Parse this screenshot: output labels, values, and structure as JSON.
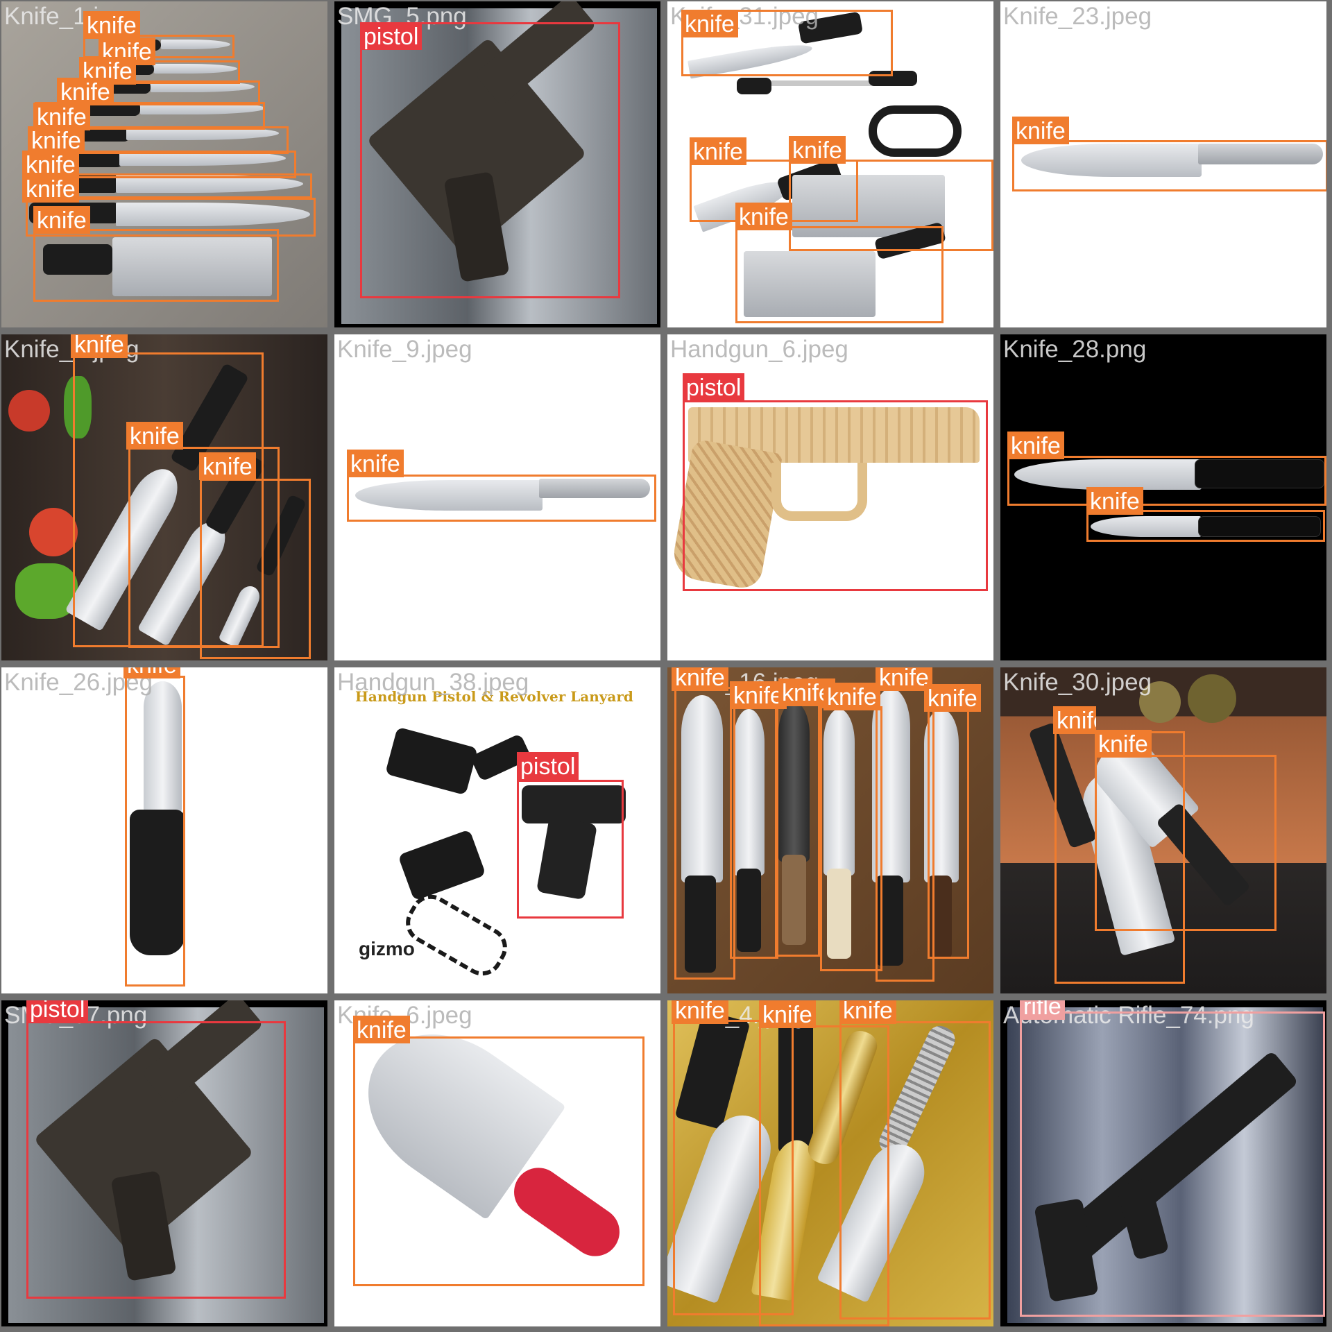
{
  "colors": {
    "grid_bg": "#6f6f6f",
    "knife_box": "#f07c2e",
    "pistol_box": "#e8393f",
    "rifle_box": "#f0a0a0"
  },
  "tiles": [
    {
      "filename": "Knife_1.jpeg",
      "bg": "#8d8a86",
      "detections": [
        {
          "label": "knife"
        },
        {
          "label": "knife"
        },
        {
          "label": "knife"
        },
        {
          "label": "knife"
        },
        {
          "label": "knife"
        },
        {
          "label": "knife"
        },
        {
          "label": "knife"
        },
        {
          "label": "knife"
        },
        {
          "label": "knife"
        }
      ]
    },
    {
      "filename": "SMG_5.png",
      "bg": "#000000",
      "detections": [
        {
          "label": "pistol"
        }
      ]
    },
    {
      "filename": "Knife_31.jpeg",
      "bg": "#ffffff",
      "detections": [
        {
          "label": "knife"
        },
        {
          "label": "knife"
        },
        {
          "label": "knife"
        },
        {
          "label": "knife"
        }
      ]
    },
    {
      "filename": "Knife_23.jpeg",
      "bg": "#ffffff",
      "detections": [
        {
          "label": "knife"
        }
      ]
    },
    {
      "filename": "Knife_5.jpeg",
      "bg": "#3a3430",
      "detections": [
        {
          "label": "knife"
        },
        {
          "label": "knife"
        },
        {
          "label": "knife"
        }
      ]
    },
    {
      "filename": "Knife_9.jpeg",
      "bg": "#ffffff",
      "detections": [
        {
          "label": "knife"
        }
      ]
    },
    {
      "filename": "Handgun_6.jpeg",
      "bg": "#ffffff",
      "detections": [
        {
          "label": "pistol"
        }
      ]
    },
    {
      "filename": "Knife_28.png",
      "bg": "#000000",
      "detections": [
        {
          "label": "knife"
        },
        {
          "label": "knife"
        }
      ]
    },
    {
      "filename": "Knife_26.jpeg",
      "bg": "#ffffff",
      "detections": [
        {
          "label": "knife"
        }
      ]
    },
    {
      "filename": "Handgun_38.jpeg",
      "bg": "#ffffff",
      "caption": "Handgun Pistol & Revolver Lanyard",
      "brand": "gizmo",
      "detections": [
        {
          "label": "pistol"
        }
      ]
    },
    {
      "filename": "Knife_16.jpeg",
      "bg": "#6b4a2e",
      "detections": [
        {
          "label": "knife"
        },
        {
          "label": "knife"
        },
        {
          "label": "knife"
        },
        {
          "label": "knife"
        },
        {
          "label": "knife"
        },
        {
          "label": "knife"
        }
      ]
    },
    {
      "filename": "Knife_30.jpeg",
      "bg": "#3a2a22",
      "detections": [
        {
          "label": "knife"
        },
        {
          "label": "knife"
        }
      ]
    },
    {
      "filename": "SMG_57.png",
      "bg": "#000000",
      "detections": [
        {
          "label": "pistol"
        }
      ]
    },
    {
      "filename": "Knife_6.jpeg",
      "bg": "#ffffff",
      "detections": [
        {
          "label": "knife"
        }
      ]
    },
    {
      "filename": "Knife_4.jpeg",
      "bg": "#c9a53a",
      "detections": [
        {
          "label": "knife"
        },
        {
          "label": "knife"
        },
        {
          "label": "knife"
        }
      ]
    },
    {
      "filename": "Automatic Rifle_74.png",
      "bg": "#2b3140",
      "detections": [
        {
          "label": "rifle"
        }
      ]
    }
  ]
}
